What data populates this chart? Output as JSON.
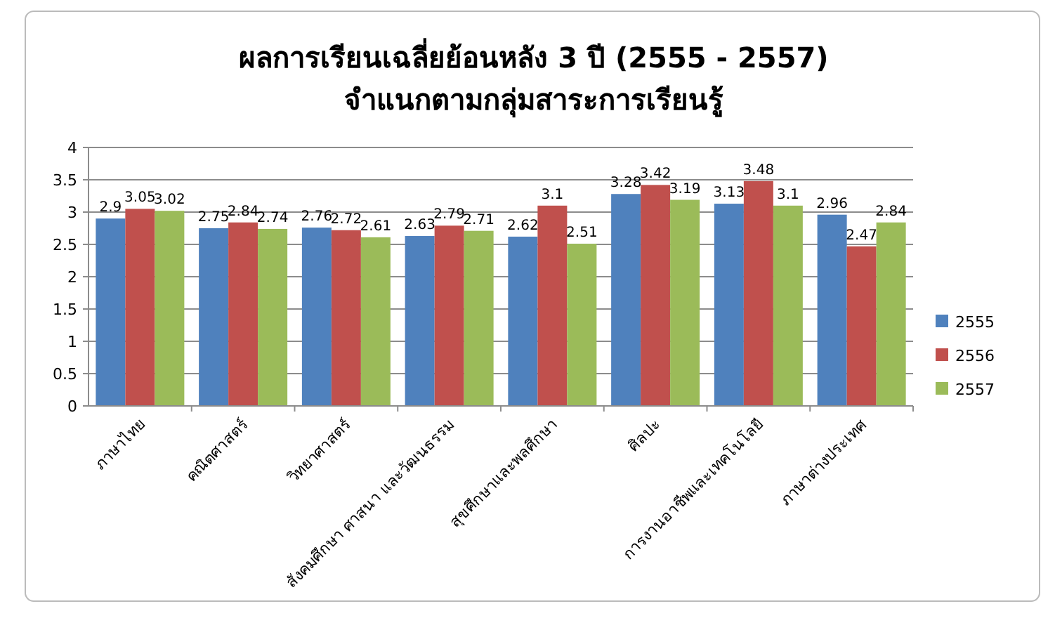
{
  "chart_data": {
    "type": "bar",
    "title": "ผลการเรียนเฉลี่ยย้อนหลัง 3 ปี (2555 - 2557)\nจำแนกตามกลุ่มสาระการเรียนรู้",
    "categories": [
      "ภาษาไทย",
      "คณิตศาสตร์",
      "วิทยาศาสตร์",
      "สังคมศึกษา ศาสนา และวัฒนธรรม",
      "สุขศึกษาและพลศึกษา",
      "ศิลปะ",
      "การงานอาชีพและเทคโนโลยี",
      "ภาษาต่างประเทศ"
    ],
    "series": [
      {
        "name": "2555",
        "color": "#4f81bd",
        "values": [
          2.9,
          2.75,
          2.76,
          2.63,
          2.62,
          3.28,
          3.13,
          2.96
        ]
      },
      {
        "name": "2556",
        "color": "#c0504d",
        "values": [
          3.05,
          2.84,
          2.72,
          2.79,
          3.1,
          3.42,
          3.48,
          2.47
        ]
      },
      {
        "name": "2557",
        "color": "#9bbb59",
        "values": [
          3.02,
          2.74,
          2.61,
          2.71,
          2.51,
          3.19,
          3.1,
          2.84
        ]
      }
    ],
    "ylim": [
      0,
      4
    ],
    "yticks": [
      0,
      0.5,
      1,
      1.5,
      2,
      2.5,
      3,
      3.5,
      4
    ],
    "grid": "y",
    "legend": "right",
    "data_labels": true
  }
}
